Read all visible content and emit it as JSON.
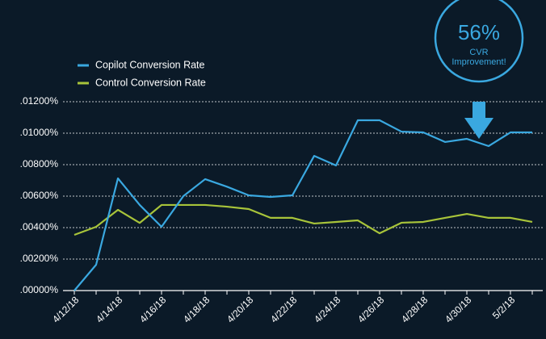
{
  "chart_data": {
    "type": "line",
    "categories": [
      "4/12/18",
      null,
      "4/14/18",
      null,
      "4/16/18",
      null,
      "4/18/18",
      null,
      "4/20/18",
      null,
      "4/22/18",
      null,
      "4/24/18",
      null,
      "4/26/18",
      null,
      "4/28/18",
      null,
      "4/30/18",
      null,
      "5/2/18",
      null
    ],
    "series": [
      {
        "name": "Copilot Conversion Rate",
        "color": "#3aa8e0",
        "values": [
          0,
          0.00164,
          0.00713,
          0.00544,
          0.00405,
          0.006,
          0.00708,
          0.0066,
          0.00605,
          0.00595,
          0.00605,
          0.00856,
          0.00795,
          0.01082,
          0.01082,
          0.0101,
          0.01005,
          0.00944,
          0.00964,
          0.00918,
          0.01005,
          0.01005
        ]
      },
      {
        "name": "Control Conversion Rate",
        "color": "#a8c43a",
        "values": [
          0.00354,
          0.00405,
          0.00513,
          0.0043,
          0.00544,
          0.00544,
          0.00544,
          0.00533,
          0.00518,
          0.00462,
          0.00462,
          0.00426,
          0.00436,
          0.00446,
          0.00364,
          0.00431,
          0.00436,
          0.00462,
          0.00487,
          0.00462,
          0.00462,
          0.00436
        ]
      }
    ],
    "ylim": [
      0,
      0.012
    ],
    "yticks": [
      {
        "value": 0,
        "label": ".00000%"
      },
      {
        "value": 0.002,
        "label": ".00200%"
      },
      {
        "value": 0.004,
        "label": ".00400%"
      },
      {
        "value": 0.006,
        "label": ".00600%"
      },
      {
        "value": 0.008,
        "label": ".00800%"
      },
      {
        "value": 0.01,
        "label": ".01000%"
      },
      {
        "value": 0.012,
        "label": ".01200%"
      }
    ],
    "grid": true,
    "legend": "top-left",
    "annotation": {
      "headline": "56%",
      "lines": [
        "CVR",
        "Improvement!"
      ],
      "color": "#3aa8e0"
    }
  }
}
